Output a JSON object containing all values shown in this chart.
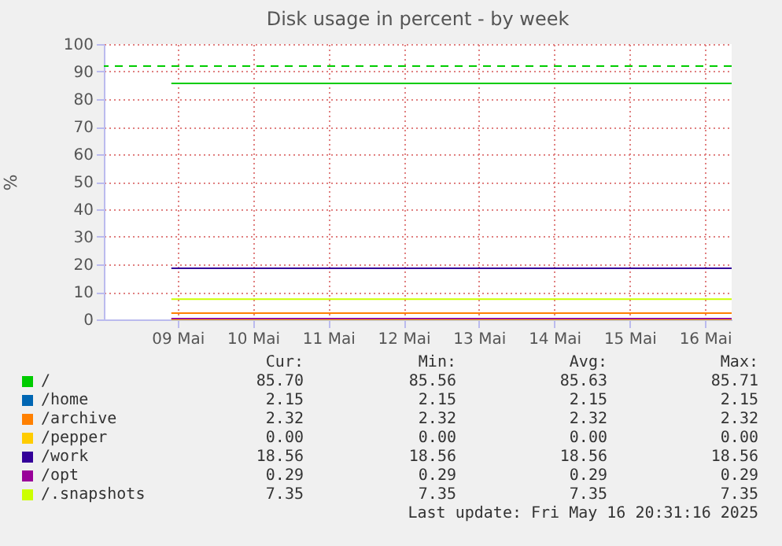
{
  "chart_data": {
    "type": "line",
    "title": "Disk usage in percent - by week",
    "ylabel": "%",
    "x": [
      "2025-05-09T10:00",
      "2025-05-16T20:30"
    ],
    "xlim": [
      "2025-05-08T12:30",
      "2025-05-16T20:30"
    ],
    "xticks": [
      {
        "value": "2025-05-09T12:00",
        "label": "09 Mai"
      },
      {
        "value": "2025-05-10T12:00",
        "label": "10 Mai"
      },
      {
        "value": "2025-05-11T12:00",
        "label": "11 Mai"
      },
      {
        "value": "2025-05-12T12:00",
        "label": "12 Mai"
      },
      {
        "value": "2025-05-13T12:00",
        "label": "13 Mai"
      },
      {
        "value": "2025-05-14T12:00",
        "label": "14 Mai"
      },
      {
        "value": "2025-05-15T12:00",
        "label": "15 Mai"
      },
      {
        "value": "2025-05-16T12:00",
        "label": "16 Mai"
      }
    ],
    "ylim": [
      0,
      100
    ],
    "yticks": [
      0,
      10,
      20,
      30,
      40,
      50,
      60,
      70,
      80,
      90,
      100
    ],
    "grid": true,
    "legend": "bottom",
    "line_style": "solid",
    "series": [
      {
        "name": "/",
        "color": "#00cc00",
        "values": [
          85.7,
          85.7
        ]
      },
      {
        "name": "/home",
        "color": "#0066b3",
        "values": [
          null,
          null
        ]
      },
      {
        "name": "/archive",
        "color": "#ff8000",
        "values": [
          2.32,
          2.32
        ]
      },
      {
        "name": "/pepper",
        "color": "#ffcc00",
        "values": [
          0,
          0
        ]
      },
      {
        "name": "/work",
        "color": "#330099",
        "values": [
          18.56,
          18.56
        ]
      },
      {
        "name": "/opt",
        "color": "#990099",
        "values": [
          0.29,
          0.29
        ]
      },
      {
        "name": "/.snapshots",
        "color": "#ccff00",
        "values": [
          7.35,
          7.35
        ]
      }
    ],
    "ref_lines": [
      {
        "axis": "y",
        "value": 92,
        "color": "#00cc00",
        "line_style": "dashed"
      }
    ],
    "annotations": [
      "Cur:",
      "Min:",
      "Avg:",
      "Max:",
      "85.70",
      "85.56",
      "85.63",
      "85.71",
      "2.15",
      "2.15",
      "2.15",
      "2.15",
      "2.32",
      "2.32",
      "2.32",
      "2.32",
      "0.00",
      "0.00",
      "0.00",
      "0.00",
      "18.56",
      "18.56",
      "18.56",
      "18.56",
      "0.29",
      "0.29",
      "0.29",
      "0.29",
      "7.35",
      "7.35",
      "7.35",
      "7.35",
      "Last update: Fri May 16 20:31:16 2025"
    ]
  }
}
